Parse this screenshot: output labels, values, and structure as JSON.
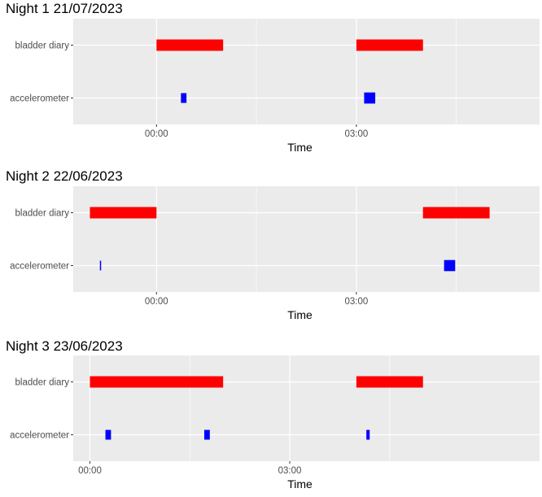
{
  "chart_data": [
    {
      "type": "timeline",
      "title": "Night 1 21/07/2023",
      "xlabel": "Time",
      "ylabel": "",
      "categories": [
        "bladder diary",
        "accelerometer"
      ],
      "xlim": [
        "22:45",
        "05:45"
      ],
      "x_ticks": [
        "00:00",
        "03:00"
      ],
      "grid": true,
      "series": [
        {
          "values": [
            {
              "category": "bladder diary",
              "start": "00:00",
              "end": "01:00"
            },
            {
              "category": "bladder diary",
              "start": "03:00",
              "end": "04:00"
            },
            {
              "category": "accelerometer",
              "start": "00:22",
              "end": "00:27"
            },
            {
              "category": "accelerometer",
              "start": "03:07",
              "end": "03:17"
            }
          ]
        }
      ],
      "colors": {
        "bladder diary": "#ff0000",
        "accelerometer": "#0000ff"
      }
    },
    {
      "type": "timeline",
      "title": "Night 2 22/06/2023",
      "xlabel": "Time",
      "ylabel": "",
      "categories": [
        "bladder diary",
        "accelerometer"
      ],
      "xlim": [
        "22:45",
        "05:45"
      ],
      "x_ticks": [
        "00:00",
        "03:00"
      ],
      "grid": true,
      "series": [
        {
          "values": [
            {
              "category": "bladder diary",
              "start": "23:00",
              "end": "00:00"
            },
            {
              "category": "bladder diary",
              "start": "04:00",
              "end": "05:00"
            },
            {
              "category": "accelerometer",
              "start": "23:09",
              "end": "23:10"
            },
            {
              "category": "accelerometer",
              "start": "04:19",
              "end": "04:29"
            }
          ]
        }
      ],
      "colors": {
        "bladder diary": "#ff0000",
        "accelerometer": "#0000ff"
      }
    },
    {
      "type": "timeline",
      "title": "Night 3 23/06/2023",
      "xlabel": "Time",
      "ylabel": "",
      "categories": [
        "bladder diary",
        "accelerometer"
      ],
      "xlim": [
        "23:45",
        "06:45"
      ],
      "x_ticks": [
        "00:00",
        "03:00"
      ],
      "grid": true,
      "series": [
        {
          "values": [
            {
              "category": "bladder diary",
              "start": "00:00",
              "end": "02:00"
            },
            {
              "category": "bladder diary",
              "start": "04:00",
              "end": "05:00"
            },
            {
              "category": "accelerometer",
              "start": "00:14",
              "end": "00:19"
            },
            {
              "category": "accelerometer",
              "start": "01:43",
              "end": "01:48"
            },
            {
              "category": "accelerometer",
              "start": "04:09",
              "end": "04:12"
            }
          ]
        }
      ],
      "colors": {
        "bladder diary": "#ff0000",
        "accelerometer": "#0000ff"
      }
    }
  ]
}
